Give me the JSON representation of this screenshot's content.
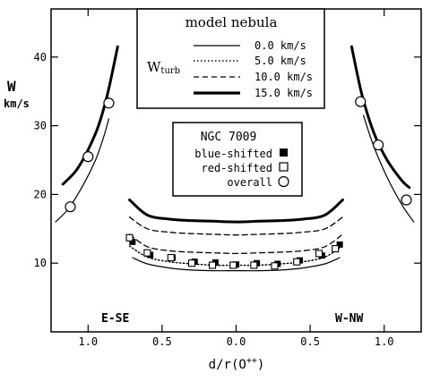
{
  "chart_data": {
    "type": "line",
    "title": "",
    "xlabel": "d/r(O++)",
    "ylabel": "W",
    "ylabel_unit": "km/s",
    "xlim": [
      1.25,
      -1.25
    ],
    "ylim": [
      0,
      47
    ],
    "x_ticks": [
      1.0,
      0.5,
      0.0,
      -0.5,
      -1.0
    ],
    "x_tick_labels": [
      "1.0",
      "0.5",
      "0.0",
      "0.5",
      "1.0"
    ],
    "y_ticks": [
      10,
      20,
      30,
      40
    ],
    "y_tick_labels": [
      "10",
      "20",
      "30",
      "40"
    ],
    "corner_labels": {
      "left": "E-SE",
      "right": "W-NW"
    },
    "model_legend": {
      "title": "model nebula",
      "param_label": "Wturb",
      "entries": [
        {
          "label": "0.0 km/s",
          "style": "solid-thin"
        },
        {
          "label": "5.0 km/s",
          "style": "dotted"
        },
        {
          "label": "10.0 km/s",
          "style": "dashed"
        },
        {
          "label": "15.0 km/s",
          "style": "solid-thick"
        }
      ]
    },
    "data_legend": {
      "title": "NGC 7009",
      "entries": [
        {
          "label": "blue-shifted",
          "marker": "filled-square"
        },
        {
          "label": "red-shifted",
          "marker": "open-square"
        },
        {
          "label": "overall",
          "marker": "open-circle"
        }
      ]
    },
    "model_curves": [
      {
        "style": "solid-thin",
        "x": [
          0.7,
          0.6,
          0.45,
          0.3,
          0.15,
          0.0,
          -0.15,
          -0.3,
          -0.45,
          -0.6,
          -0.7
        ],
        "y": [
          10.8,
          9.9,
          9.3,
          9.0,
          8.9,
          8.9,
          8.9,
          9.0,
          9.3,
          9.9,
          10.8
        ]
      },
      {
        "style": "dotted",
        "x": [
          0.72,
          0.6,
          0.45,
          0.3,
          0.15,
          0.0,
          -0.15,
          -0.3,
          -0.45,
          -0.6,
          -0.72
        ],
        "y": [
          12.5,
          10.9,
          10.2,
          9.9,
          9.7,
          9.7,
          9.7,
          9.9,
          10.2,
          10.9,
          12.5
        ]
      },
      {
        "style": "dashed",
        "x": [
          0.72,
          0.6,
          0.45,
          0.3,
          0.15,
          0.0,
          -0.15,
          -0.3,
          -0.45,
          -0.6,
          -0.72
        ],
        "y": [
          14.2,
          12.4,
          11.8,
          11.6,
          11.5,
          11.4,
          11.5,
          11.6,
          11.8,
          12.4,
          14.2
        ]
      },
      {
        "style": "solid-thick",
        "x": [
          0.72,
          0.6,
          0.45,
          0.3,
          0.15,
          0.0,
          -0.15,
          -0.3,
          -0.45,
          -0.6,
          -0.72
        ],
        "y": [
          19.2,
          17.0,
          16.4,
          16.2,
          16.1,
          16.0,
          16.1,
          16.2,
          16.4,
          17.0,
          19.2
        ]
      },
      {
        "style": "dashed",
        "x": [
          0.72,
          0.6,
          0.45,
          0.3,
          0.15,
          0.0,
          -0.15,
          -0.3,
          -0.45,
          -0.6,
          -0.72
        ],
        "y": [
          16.7,
          15.0,
          14.5,
          14.3,
          14.2,
          14.1,
          14.2,
          14.3,
          14.5,
          15.0,
          16.7
        ]
      },
      {
        "style": "solid-thick",
        "x": [
          1.17,
          1.08,
          1.0,
          0.93,
          0.87,
          0.8
        ],
        "y": [
          21.5,
          23.5,
          26.5,
          30.0,
          34.5,
          41.5
        ]
      },
      {
        "style": "solid-thin",
        "x": [
          1.22,
          1.13,
          1.03,
          0.95,
          0.9,
          0.86
        ],
        "y": [
          16.0,
          18.0,
          21.5,
          25.0,
          28.0,
          31.0
        ]
      },
      {
        "style": "solid-thick",
        "x": [
          -0.78,
          -0.85,
          -0.93,
          -1.02,
          -1.12,
          -1.17
        ],
        "y": [
          41.5,
          34.5,
          29.0,
          25.0,
          22.0,
          21.0
        ]
      },
      {
        "style": "solid-thin",
        "x": [
          -0.86,
          -0.93,
          -1.02,
          -1.12,
          -1.2
        ],
        "y": [
          31.5,
          27.0,
          22.5,
          18.5,
          16.0
        ]
      }
    ],
    "series": [
      {
        "name": "blue-shifted",
        "marker": "filled-square",
        "x": [
          0.7,
          0.58,
          0.43,
          0.28,
          0.14,
          0.0,
          -0.14,
          -0.28,
          -0.43,
          -0.58,
          -0.7
        ],
        "y": [
          13.1,
          11.2,
          10.8,
          10.2,
          10.1,
          9.8,
          10.0,
          9.9,
          10.4,
          11.1,
          12.7
        ]
      },
      {
        "name": "red-shifted",
        "marker": "open-square",
        "x": [
          0.72,
          0.6,
          0.44,
          0.3,
          0.16,
          0.02,
          -0.12,
          -0.26,
          -0.41,
          -0.56,
          -0.67
        ],
        "y": [
          13.7,
          11.5,
          10.8,
          10.0,
          9.7,
          9.7,
          9.7,
          9.6,
          10.2,
          11.4,
          12.1
        ]
      },
      {
        "name": "overall",
        "marker": "open-circle",
        "x": [
          1.12,
          1.0,
          0.86,
          -0.84,
          -0.96,
          -1.15
        ],
        "y": [
          18.2,
          25.5,
          33.3,
          33.5,
          27.2,
          19.2
        ]
      }
    ]
  }
}
